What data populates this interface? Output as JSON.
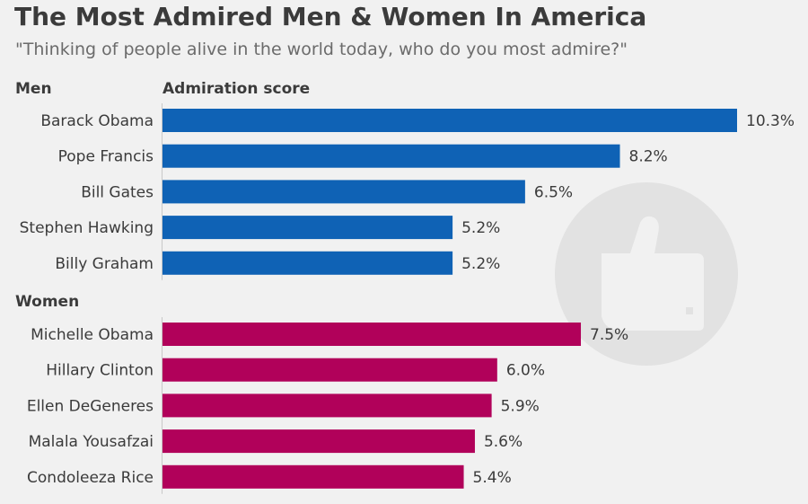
{
  "chart_data": {
    "type": "bar",
    "title": "The Most Admired Men & Women In America",
    "subtitle": "\"Thinking of people alive in the world today, who do you most admire?\"",
    "value_header": "Admiration score",
    "unit": "%",
    "xlim": [
      0,
      10.3
    ],
    "groups": [
      {
        "name": "Men",
        "color": "#0f62b5",
        "categories": [
          "Barack Obama",
          "Pope Francis",
          "Bill Gates",
          "Stephen Hawking",
          "Billy Graham"
        ],
        "values": [
          10.3,
          8.2,
          6.5,
          5.2,
          5.2
        ]
      },
      {
        "name": "Women",
        "color": "#b1015a",
        "categories": [
          "Michelle Obama",
          "Hillary Clinton",
          "Ellen DeGeneres",
          "Malala Yousafzai",
          "Condoleeza Rice"
        ],
        "values": [
          7.5,
          6.0,
          5.9,
          5.6,
          5.4
        ]
      }
    ]
  },
  "watermark_icon": "thumbs-up-icon"
}
